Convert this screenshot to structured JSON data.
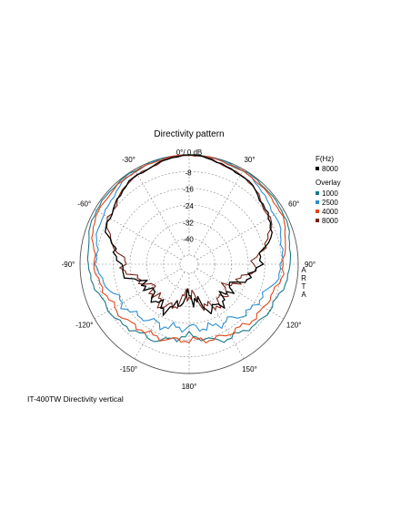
{
  "chart_data": {
    "type": "polar",
    "title": "Directivity pattern",
    "radial_unit": "dB",
    "r_range": [
      -48,
      0
    ],
    "r_ticks": [
      "0°/ 0 dB",
      "-8",
      "-16",
      "-24",
      "-32",
      "-40"
    ],
    "angle_labels": [
      "0°/ 0 dB",
      "30°",
      "60°",
      "90°",
      "120°",
      "150°",
      "180°",
      "-150°",
      "-120°",
      "-90°",
      "-60°",
      "-30°"
    ],
    "grid": true,
    "watermark": [
      "A",
      "R",
      "T",
      "A"
    ],
    "legend": {
      "main_header": "F(Hz)",
      "overlay_header": "Overlay",
      "placement": "right"
    },
    "series": [
      {
        "name": "8000",
        "role": "main",
        "color": "#000000",
        "angles": [
          0,
          30,
          60,
          90,
          120,
          150,
          180,
          210,
          240,
          270,
          300,
          330
        ],
        "values": [
          0,
          -3,
          -8,
          -19,
          -30,
          -28,
          -37,
          -28,
          -30,
          -19,
          -8,
          -3
        ]
      },
      {
        "name": "1000",
        "role": "overlay",
        "color": "#1b7a86",
        "angles": [
          0,
          30,
          60,
          90,
          120,
          150,
          180,
          210,
          240,
          270,
          300,
          330
        ],
        "values": [
          0,
          -0.5,
          -1,
          -4,
          -8,
          -12,
          -18,
          -12,
          -8,
          -4,
          -1,
          -0.5
        ]
      },
      {
        "name": "2500",
        "role": "overlay",
        "color": "#2b8fd0",
        "angles": [
          0,
          30,
          60,
          90,
          120,
          150,
          180,
          210,
          240,
          270,
          300,
          330
        ],
        "values": [
          0,
          -1,
          -5,
          -8,
          -15,
          -20,
          -22,
          -20,
          -15,
          -8,
          -5,
          -1
        ]
      },
      {
        "name": "4000",
        "role": "overlay",
        "color": "#e0451b",
        "angles": [
          0,
          30,
          60,
          90,
          120,
          150,
          180,
          210,
          240,
          270,
          300,
          330
        ],
        "values": [
          0,
          -1,
          -2,
          -7,
          -11,
          -14,
          -16,
          -14,
          -11,
          -7,
          -2,
          -1
        ]
      },
      {
        "name": "8000",
        "role": "overlay",
        "color": "#7a2418",
        "angles": [
          0,
          30,
          60,
          90,
          120,
          150,
          180,
          210,
          240,
          270,
          300,
          330
        ],
        "values": [
          0,
          -3,
          -8,
          -21,
          -31,
          -29,
          -38,
          -29,
          -31,
          -21,
          -8,
          -3
        ]
      }
    ]
  },
  "caption": "IT-400TW Directivity vertical"
}
